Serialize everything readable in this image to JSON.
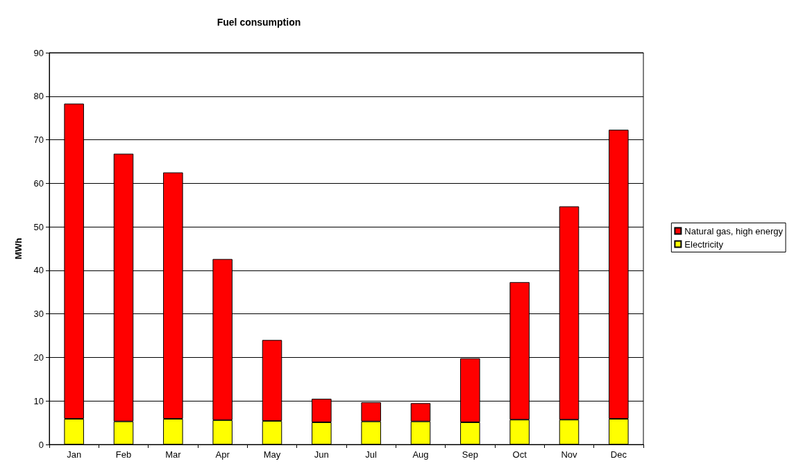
{
  "chart_data": {
    "type": "bar",
    "title": "Fuel consumption",
    "ylabel": "MWh",
    "stacked": true,
    "categories": [
      "Jan",
      "Feb",
      "Mar",
      "Apr",
      "May",
      "Jun",
      "Jul",
      "Aug",
      "Sep",
      "Oct",
      "Nov",
      "Dec"
    ],
    "series": [
      {
        "name": "Electricity",
        "color": "#ffff00",
        "values": [
          5.9,
          5.3,
          5.9,
          5.6,
          5.4,
          5.1,
          5.3,
          5.3,
          5.1,
          5.7,
          5.7,
          5.9
        ]
      },
      {
        "name": "Natural gas, high energy",
        "color": "#ff0000",
        "values": [
          72.4,
          61.5,
          56.6,
          37.0,
          18.6,
          5.4,
          4.4,
          4.2,
          14.7,
          31.6,
          49.0,
          66.4
        ]
      }
    ],
    "ylim": [
      0,
      90
    ],
    "yticks": [
      0,
      10,
      20,
      30,
      40,
      50,
      60,
      70,
      80,
      90
    ],
    "grid": "y",
    "legend": "right"
  }
}
